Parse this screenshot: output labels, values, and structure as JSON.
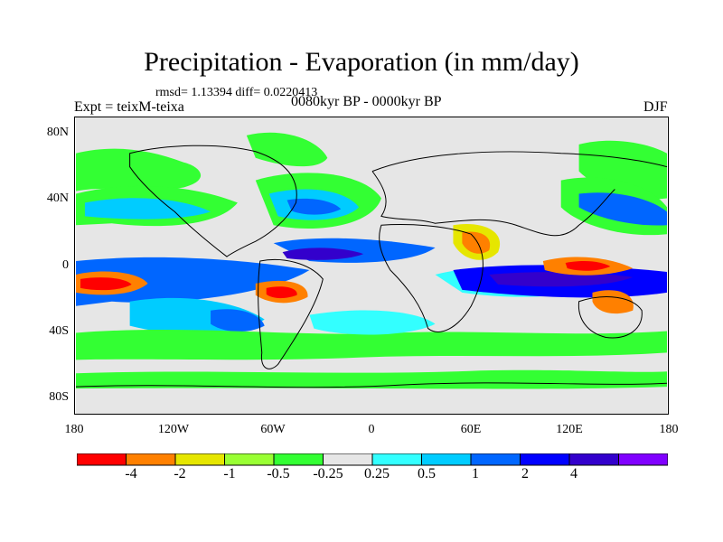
{
  "title": "Precipitation - Evaporation (in mm/day)",
  "stats": "rmsd= 1.13394 diff= 0.0220413",
  "experiment": "Expt = teixM-teixa",
  "period": "0080kyr BP - 0000kyr BP",
  "season": "DJF",
  "map": {
    "projection": "cylindrical equidistant",
    "lat_labels": [
      "80N",
      "40N",
      "0",
      "40S",
      "80S"
    ],
    "lon_labels": [
      "180",
      "120W",
      "60W",
      "0",
      "60E",
      "120E",
      "180"
    ],
    "background_color": "#e6e6e6",
    "coastline_color": "#000000"
  },
  "colorbar": {
    "colors": [
      "#ff0000",
      "#ff8000",
      "#e6e600",
      "#99ff33",
      "#33ff33",
      "#e6e6e6",
      "#33ffff",
      "#00ccff",
      "#0066ff",
      "#0000ff",
      "#3300cc",
      "#8000ff"
    ],
    "tick_labels": [
      "-4",
      "-2",
      "-1",
      "-0.5",
      "-0.25",
      "0.25",
      "0.5",
      "1",
      "2",
      "4"
    ]
  }
}
